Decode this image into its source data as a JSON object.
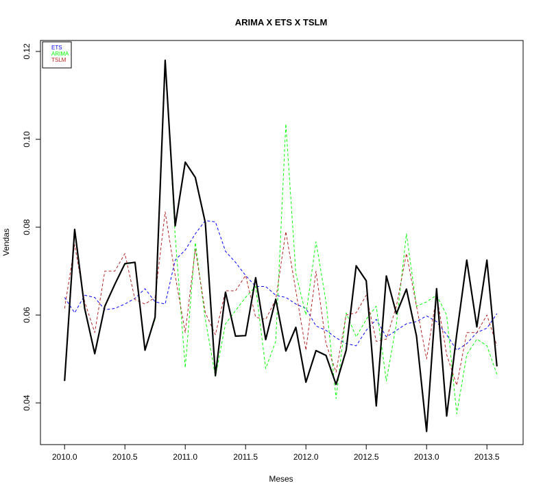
{
  "chart_data": {
    "type": "line",
    "title": "ARIMA X ETS X TSLM",
    "xlabel": "Meses",
    "ylabel": "Vendas",
    "xlim": [
      2009.8,
      2013.8
    ],
    "ylim": [
      0.0305,
      0.1225
    ],
    "x_ticks": [
      "2010.0",
      "2010.5",
      "2011.0",
      "2011.5",
      "2012.0",
      "2012.5",
      "2013.0",
      "2013.5"
    ],
    "y_ticks": [
      "0.04",
      "0.06",
      "0.08",
      "0.10",
      "0.12"
    ],
    "x_start": 2010.0,
    "x_step": 0.08333,
    "legend": {
      "position": "top-left",
      "entries": [
        "ETS",
        "ARIMA",
        "TSLM"
      ]
    },
    "series": [
      {
        "name": "",
        "color": "#000000",
        "dash": "solid",
        "values": [
          0.045,
          0.0795,
          0.0615,
          0.0512,
          0.062,
          0.067,
          0.0717,
          0.072,
          0.052,
          0.0595,
          0.118,
          0.0803,
          0.0948,
          0.0913,
          0.081,
          0.0462,
          0.0652,
          0.0552,
          0.0553,
          0.0685,
          0.0544,
          0.0636,
          0.0518,
          0.0572,
          0.0447,
          0.0519,
          0.0508,
          0.0442,
          0.052,
          0.0712,
          0.0678,
          0.0393,
          0.0689,
          0.0603,
          0.0659,
          0.0552,
          0.0335,
          0.066,
          0.037,
          0.0557,
          0.0725,
          0.0573,
          0.0725,
          0.0483
        ]
      },
      {
        "name": "ETS",
        "color": "#0000ff",
        "dash": "dashed",
        "values": [
          0.064,
          0.0605,
          0.0645,
          0.064,
          0.0612,
          0.0615,
          0.0625,
          0.0638,
          0.066,
          0.063,
          0.0625,
          0.0725,
          0.0748,
          0.0785,
          0.0815,
          0.0812,
          0.0745,
          0.072,
          0.069,
          0.0665,
          0.0665,
          0.0645,
          0.064,
          0.0625,
          0.0615,
          0.0575,
          0.0565,
          0.0548,
          0.0535,
          0.053,
          0.0565,
          0.059,
          0.055,
          0.0565,
          0.058,
          0.0585,
          0.0598,
          0.0585,
          0.0555,
          0.052,
          0.0535,
          0.056,
          0.057,
          0.0603
        ]
      },
      {
        "name": "ARIMA",
        "color": "#00ff00",
        "dash": "dashed",
        "values": [
          0.045,
          0.079,
          0.061,
          0.0515,
          0.062,
          0.067,
          0.0715,
          0.072,
          0.052,
          0.059,
          0.118,
          0.078,
          0.048,
          0.0765,
          0.059,
          0.046,
          0.058,
          0.061,
          0.064,
          0.0665,
          0.0478,
          0.054,
          0.1035,
          0.0695,
          0.06,
          0.0767,
          0.063,
          0.041,
          0.0605,
          0.055,
          0.059,
          0.062,
          0.045,
          0.058,
          0.0785,
          0.062,
          0.063,
          0.0645,
          0.06,
          0.0375,
          0.051,
          0.0545,
          0.053,
          0.0465
        ]
      },
      {
        "name": "TSLM",
        "color": "#b22222",
        "dash": "dashed",
        "values": [
          0.0615,
          0.076,
          0.063,
          0.056,
          0.07,
          0.07,
          0.074,
          0.0635,
          0.0625,
          0.064,
          0.0835,
          0.069,
          0.056,
          0.075,
          0.0605,
          0.0555,
          0.0655,
          0.0655,
          0.069,
          0.0595,
          0.059,
          0.0635,
          0.079,
          0.0655,
          0.052,
          0.07,
          0.0535,
          0.047,
          0.06,
          0.0605,
          0.0645,
          0.054,
          0.0545,
          0.062,
          0.074,
          0.062,
          0.05,
          0.0645,
          0.051,
          0.044,
          0.056,
          0.056,
          0.06,
          0.053
        ]
      }
    ]
  }
}
